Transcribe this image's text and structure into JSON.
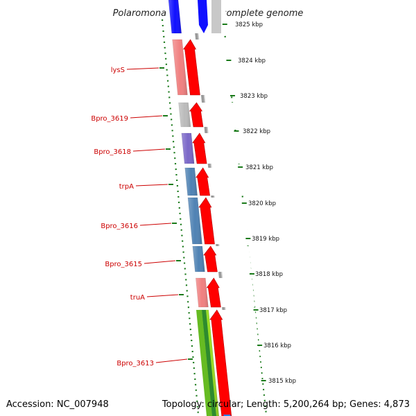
{
  "title": "Polaromonas sp. JS666, complete genome",
  "accession": "Accession: NC_007948",
  "topology": "Topology: circular; Length: 5,200,264 bp; Genes: 4,873",
  "colors": {
    "label": "#cc0000",
    "cds_forward": "#ff0000",
    "tick": "#1a7a1a",
    "backbone": "#888888"
  },
  "gene_labels": [
    "lysS",
    "Bpro_3619",
    "Bpro_3618",
    "trpA",
    "Bpro_3616",
    "Bpro_3615",
    "truA",
    "Bpro_3613"
  ],
  "kbp_labels": [
    "3825 kbp",
    "3824 kbp",
    "3823 kbp",
    "3822 kbp",
    "3821 kbp",
    "3820 kbp",
    "3819 kbp",
    "3818 kbp",
    "3817 kbp",
    "3816 kbp",
    "3815 kbp"
  ],
  "genes": [
    {
      "name": "unlabeled-top-blue",
      "color": "#1010ff",
      "red_arrow": false
    },
    {
      "name": "lysS",
      "color": "#f08080",
      "red_arrow": true
    },
    {
      "name": "Bpro_3619",
      "color": "#bbbbbb",
      "red_arrow": true
    },
    {
      "name": "Bpro_3618",
      "color": "#7b68c8",
      "red_arrow": true
    },
    {
      "name": "trpA",
      "color": "#4f82b4",
      "red_arrow": true
    },
    {
      "name": "Bpro_3616",
      "color": "#4f82b4",
      "red_arrow": true
    },
    {
      "name": "Bpro_3615",
      "color": "#4f82b4",
      "red_arrow": true
    },
    {
      "name": "truA",
      "color": "#f08080",
      "red_arrow": true
    },
    {
      "name": "Bpro_3613",
      "color": "#99dd22",
      "red_arrow": true
    }
  ]
}
